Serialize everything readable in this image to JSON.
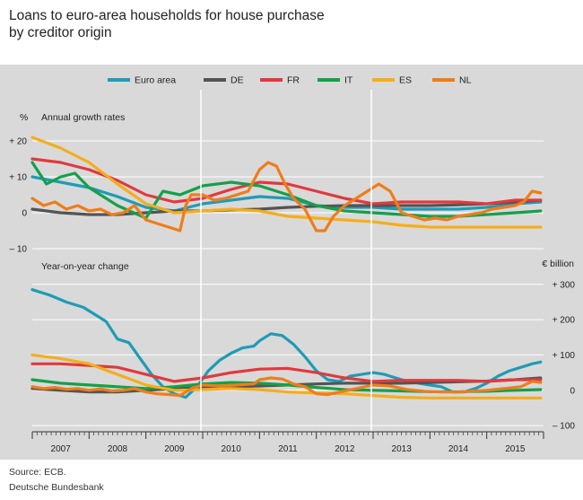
{
  "title_line1": "Loans to euro-area households for house purchase",
  "title_line2": "by creditor origin",
  "source_line1": "Source: ECB.",
  "source_line2": "Deutsche Bundesbank",
  "chart_data": [
    {
      "type": "line",
      "title": "Annual growth rates",
      "unit": "%",
      "x_range": [
        2007.0,
        2016.0
      ],
      "ylim": [
        -12,
        23
      ],
      "yticks": [
        -10,
        0,
        10,
        20
      ],
      "ytick_labels": [
        "– 10",
        "0",
        "+ 10",
        "+ 20"
      ],
      "x_categories": [
        "2007",
        "2008",
        "2009",
        "2010",
        "2011",
        "2012",
        "2013",
        "2014",
        "2015"
      ],
      "legend": "top",
      "grid": true,
      "series": [
        {
          "name": "Euro area",
          "color": "#1f9bb5",
          "x": [
            2007.0,
            2007.5,
            2008.0,
            2008.5,
            2009.0,
            2009.5,
            2010.0,
            2010.5,
            2011.0,
            2011.5,
            2012.0,
            2012.5,
            2013.0,
            2013.5,
            2014.0,
            2014.5,
            2015.0,
            2015.5,
            2015.95
          ],
          "y": [
            10,
            8.5,
            7,
            4.5,
            1.5,
            0.5,
            2.5,
            3.5,
            4.5,
            4,
            2,
            1.5,
            1.5,
            1,
            1,
            1,
            1.5,
            2.5,
            3
          ]
        },
        {
          "name": "DE",
          "color": "#545454",
          "x": [
            2007.0,
            2007.5,
            2008.0,
            2008.5,
            2009.0,
            2009.5,
            2010.0,
            2010.5,
            2011.0,
            2011.5,
            2012.0,
            2012.5,
            2013.0,
            2013.5,
            2014.0,
            2014.5,
            2015.0,
            2015.5,
            2015.95
          ],
          "y": [
            1,
            0,
            -0.5,
            -0.5,
            0,
            0.5,
            0.5,
            0.8,
            1,
            1.5,
            1.8,
            2,
            2,
            2,
            2,
            2.2,
            2.5,
            3,
            3.5
          ]
        },
        {
          "name": "FR",
          "color": "#e03a3e",
          "x": [
            2007.0,
            2007.5,
            2008.0,
            2008.5,
            2009.0,
            2009.5,
            2010.0,
            2010.5,
            2011.0,
            2011.5,
            2012.0,
            2012.5,
            2013.0,
            2013.5,
            2014.0,
            2014.5,
            2015.0,
            2015.5,
            2015.95
          ],
          "y": [
            15,
            14,
            12,
            9,
            5,
            3,
            4,
            6.5,
            8.5,
            8,
            6,
            4,
            2.5,
            3,
            3,
            3,
            2.5,
            3.5,
            3.5
          ]
        },
        {
          "name": "IT",
          "color": "#14a04a",
          "x": [
            2007.0,
            2007.25,
            2007.5,
            2007.75,
            2008.0,
            2008.5,
            2009.0,
            2009.3,
            2009.6,
            2010.0,
            2010.5,
            2011.0,
            2011.5,
            2012.0,
            2012.5,
            2013.0,
            2013.5,
            2014.0,
            2014.5,
            2015.0,
            2015.5,
            2015.95
          ],
          "y": [
            14,
            8,
            10,
            11,
            7,
            2,
            -1.5,
            6,
            5,
            7.5,
            8.5,
            7.5,
            5,
            2,
            0.5,
            0,
            -0.5,
            -1,
            -1,
            -0.5,
            0,
            0.5
          ]
        },
        {
          "name": "ES",
          "color": "#f4ae1b",
          "x": [
            2007.0,
            2007.5,
            2008.0,
            2008.5,
            2009.0,
            2009.5,
            2010.0,
            2010.5,
            2011.0,
            2011.5,
            2012.0,
            2012.5,
            2013.0,
            2013.5,
            2014.0,
            2014.5,
            2015.0,
            2015.5,
            2015.95
          ],
          "y": [
            21,
            18,
            14,
            8,
            2.5,
            0,
            0.5,
            1,
            0.5,
            -1,
            -1.5,
            -2,
            -2.5,
            -3.5,
            -4,
            -4,
            -4,
            -4,
            -4
          ]
        },
        {
          "name": "NL",
          "color": "#ef7d1a",
          "x": [
            2007.0,
            2007.2,
            2007.4,
            2007.6,
            2007.8,
            2008.0,
            2008.2,
            2008.4,
            2008.6,
            2008.8,
            2009.0,
            2009.2,
            2009.4,
            2009.6,
            2009.7,
            2009.8,
            2010.0,
            2010.2,
            2010.4,
            2010.6,
            2010.8,
            2011.0,
            2011.15,
            2011.3,
            2011.45,
            2011.6,
            2011.8,
            2012.0,
            2012.15,
            2012.3,
            2012.5,
            2012.7,
            2012.9,
            2013.1,
            2013.3,
            2013.5,
            2013.7,
            2013.9,
            2014.1,
            2014.3,
            2014.5,
            2014.7,
            2014.9,
            2015.1,
            2015.3,
            2015.5,
            2015.65,
            2015.8,
            2015.95
          ],
          "y": [
            4,
            2,
            3,
            1,
            2,
            0.5,
            1,
            -0.5,
            0,
            2,
            -2,
            -3,
            -4,
            -5,
            2,
            5,
            5,
            3.5,
            4,
            5,
            6,
            12,
            14,
            13,
            8,
            4,
            1,
            -5,
            -5,
            -1,
            2,
            4,
            6,
            8,
            6,
            0,
            -1,
            -2,
            -1.5,
            -2,
            -1,
            -0.5,
            0,
            1,
            1.5,
            2,
            3,
            6,
            5.5
          ]
        }
      ]
    },
    {
      "type": "line",
      "title": "Year-on-year change",
      "unit": "€ billion",
      "x_range": [
        2007.0,
        2016.0
      ],
      "ylim": [
        -110,
        330
      ],
      "yticks": [
        -100,
        0,
        100,
        200,
        300
      ],
      "ytick_labels": [
        "– 100",
        "0",
        "+ 100",
        "+ 200",
        "+ 300"
      ],
      "x_categories": [
        "2007",
        "2008",
        "2009",
        "2010",
        "2011",
        "2012",
        "2013",
        "2014",
        "2015"
      ],
      "grid": true,
      "series": [
        {
          "name": "Euro area",
          "color": "#1f9bb5",
          "x": [
            2007.0,
            2007.3,
            2007.6,
            2007.9,
            2008.1,
            2008.3,
            2008.5,
            2008.7,
            2008.9,
            2009.1,
            2009.3,
            2009.5,
            2009.7,
            2009.9,
            2010.1,
            2010.3,
            2010.5,
            2010.7,
            2010.9,
            2011.0,
            2011.2,
            2011.4,
            2011.6,
            2011.8,
            2012.0,
            2012.2,
            2012.4,
            2012.6,
            2012.8,
            2013.0,
            2013.2,
            2013.4,
            2013.6,
            2013.8,
            2014.0,
            2014.2,
            2014.4,
            2014.6,
            2014.8,
            2015.0,
            2015.2,
            2015.4,
            2015.6,
            2015.8,
            2015.95
          ],
          "y": [
            285,
            270,
            250,
            235,
            215,
            195,
            145,
            135,
            90,
            45,
            10,
            -10,
            -20,
            10,
            55,
            85,
            105,
            120,
            125,
            140,
            160,
            155,
            130,
            95,
            55,
            30,
            25,
            40,
            45,
            50,
            45,
            35,
            25,
            20,
            15,
            10,
            -5,
            -5,
            5,
            20,
            40,
            55,
            65,
            75,
            80
          ]
        },
        {
          "name": "DE",
          "color": "#545454",
          "x": [
            2007.0,
            2007.5,
            2008.0,
            2008.5,
            2009.0,
            2009.5,
            2010.0,
            2010.5,
            2011.0,
            2011.5,
            2012.0,
            2012.5,
            2013.0,
            2013.5,
            2014.0,
            2014.5,
            2015.0,
            2015.5,
            2015.95
          ],
          "y": [
            5,
            0,
            -5,
            -5,
            0,
            5,
            8,
            10,
            12,
            15,
            18,
            20,
            20,
            20,
            22,
            24,
            26,
            30,
            35
          ]
        },
        {
          "name": "FR",
          "color": "#e03a3e",
          "x": [
            2007.0,
            2007.5,
            2008.0,
            2008.5,
            2009.0,
            2009.5,
            2010.0,
            2010.5,
            2011.0,
            2011.5,
            2012.0,
            2012.5,
            2013.0,
            2013.5,
            2014.0,
            2014.5,
            2015.0,
            2015.5,
            2015.95
          ],
          "y": [
            75,
            75,
            70,
            65,
            45,
            25,
            35,
            50,
            60,
            62,
            50,
            35,
            25,
            28,
            28,
            28,
            25,
            30,
            30
          ]
        },
        {
          "name": "IT",
          "color": "#14a04a",
          "x": [
            2007.0,
            2007.5,
            2008.0,
            2008.5,
            2009.0,
            2009.5,
            2010.0,
            2010.5,
            2011.0,
            2011.5,
            2012.0,
            2012.5,
            2013.0,
            2013.5,
            2014.0,
            2014.5,
            2015.0,
            2015.5,
            2015.95
          ],
          "y": [
            30,
            20,
            15,
            10,
            5,
            10,
            18,
            22,
            20,
            15,
            8,
            2,
            0,
            -2,
            -4,
            -4,
            -3,
            0,
            2
          ]
        },
        {
          "name": "ES",
          "color": "#f4ae1b",
          "x": [
            2007.0,
            2007.5,
            2008.0,
            2008.5,
            2009.0,
            2009.5,
            2010.0,
            2010.5,
            2011.0,
            2011.5,
            2012.0,
            2012.5,
            2013.0,
            2013.5,
            2014.0,
            2014.5,
            2015.0,
            2015.5,
            2015.95
          ],
          "y": [
            100,
            90,
            75,
            45,
            15,
            0,
            2,
            5,
            2,
            -5,
            -8,
            -10,
            -15,
            -20,
            -22,
            -22,
            -22,
            -22,
            -22
          ]
        },
        {
          "name": "NL",
          "color": "#ef7d1a",
          "x": [
            2007.0,
            2007.2,
            2007.4,
            2007.6,
            2007.8,
            2008.0,
            2008.2,
            2008.4,
            2008.6,
            2008.8,
            2009.0,
            2009.2,
            2009.4,
            2009.6,
            2009.8,
            2010.0,
            2010.3,
            2010.6,
            2010.9,
            2011.0,
            2011.2,
            2011.4,
            2011.6,
            2011.8,
            2012.0,
            2012.2,
            2012.5,
            2012.8,
            2013.0,
            2013.3,
            2013.6,
            2013.9,
            2014.2,
            2014.5,
            2014.8,
            2015.0,
            2015.3,
            2015.6,
            2015.8,
            2015.95
          ],
          "y": [
            10,
            5,
            8,
            3,
            5,
            0,
            4,
            -2,
            0,
            5,
            -5,
            -10,
            -12,
            -15,
            5,
            15,
            12,
            15,
            18,
            30,
            35,
            32,
            18,
            10,
            -10,
            -12,
            -2,
            8,
            15,
            12,
            2,
            -3,
            -5,
            -5,
            -2,
            0,
            5,
            10,
            25,
            22
          ]
        }
      ]
    }
  ]
}
